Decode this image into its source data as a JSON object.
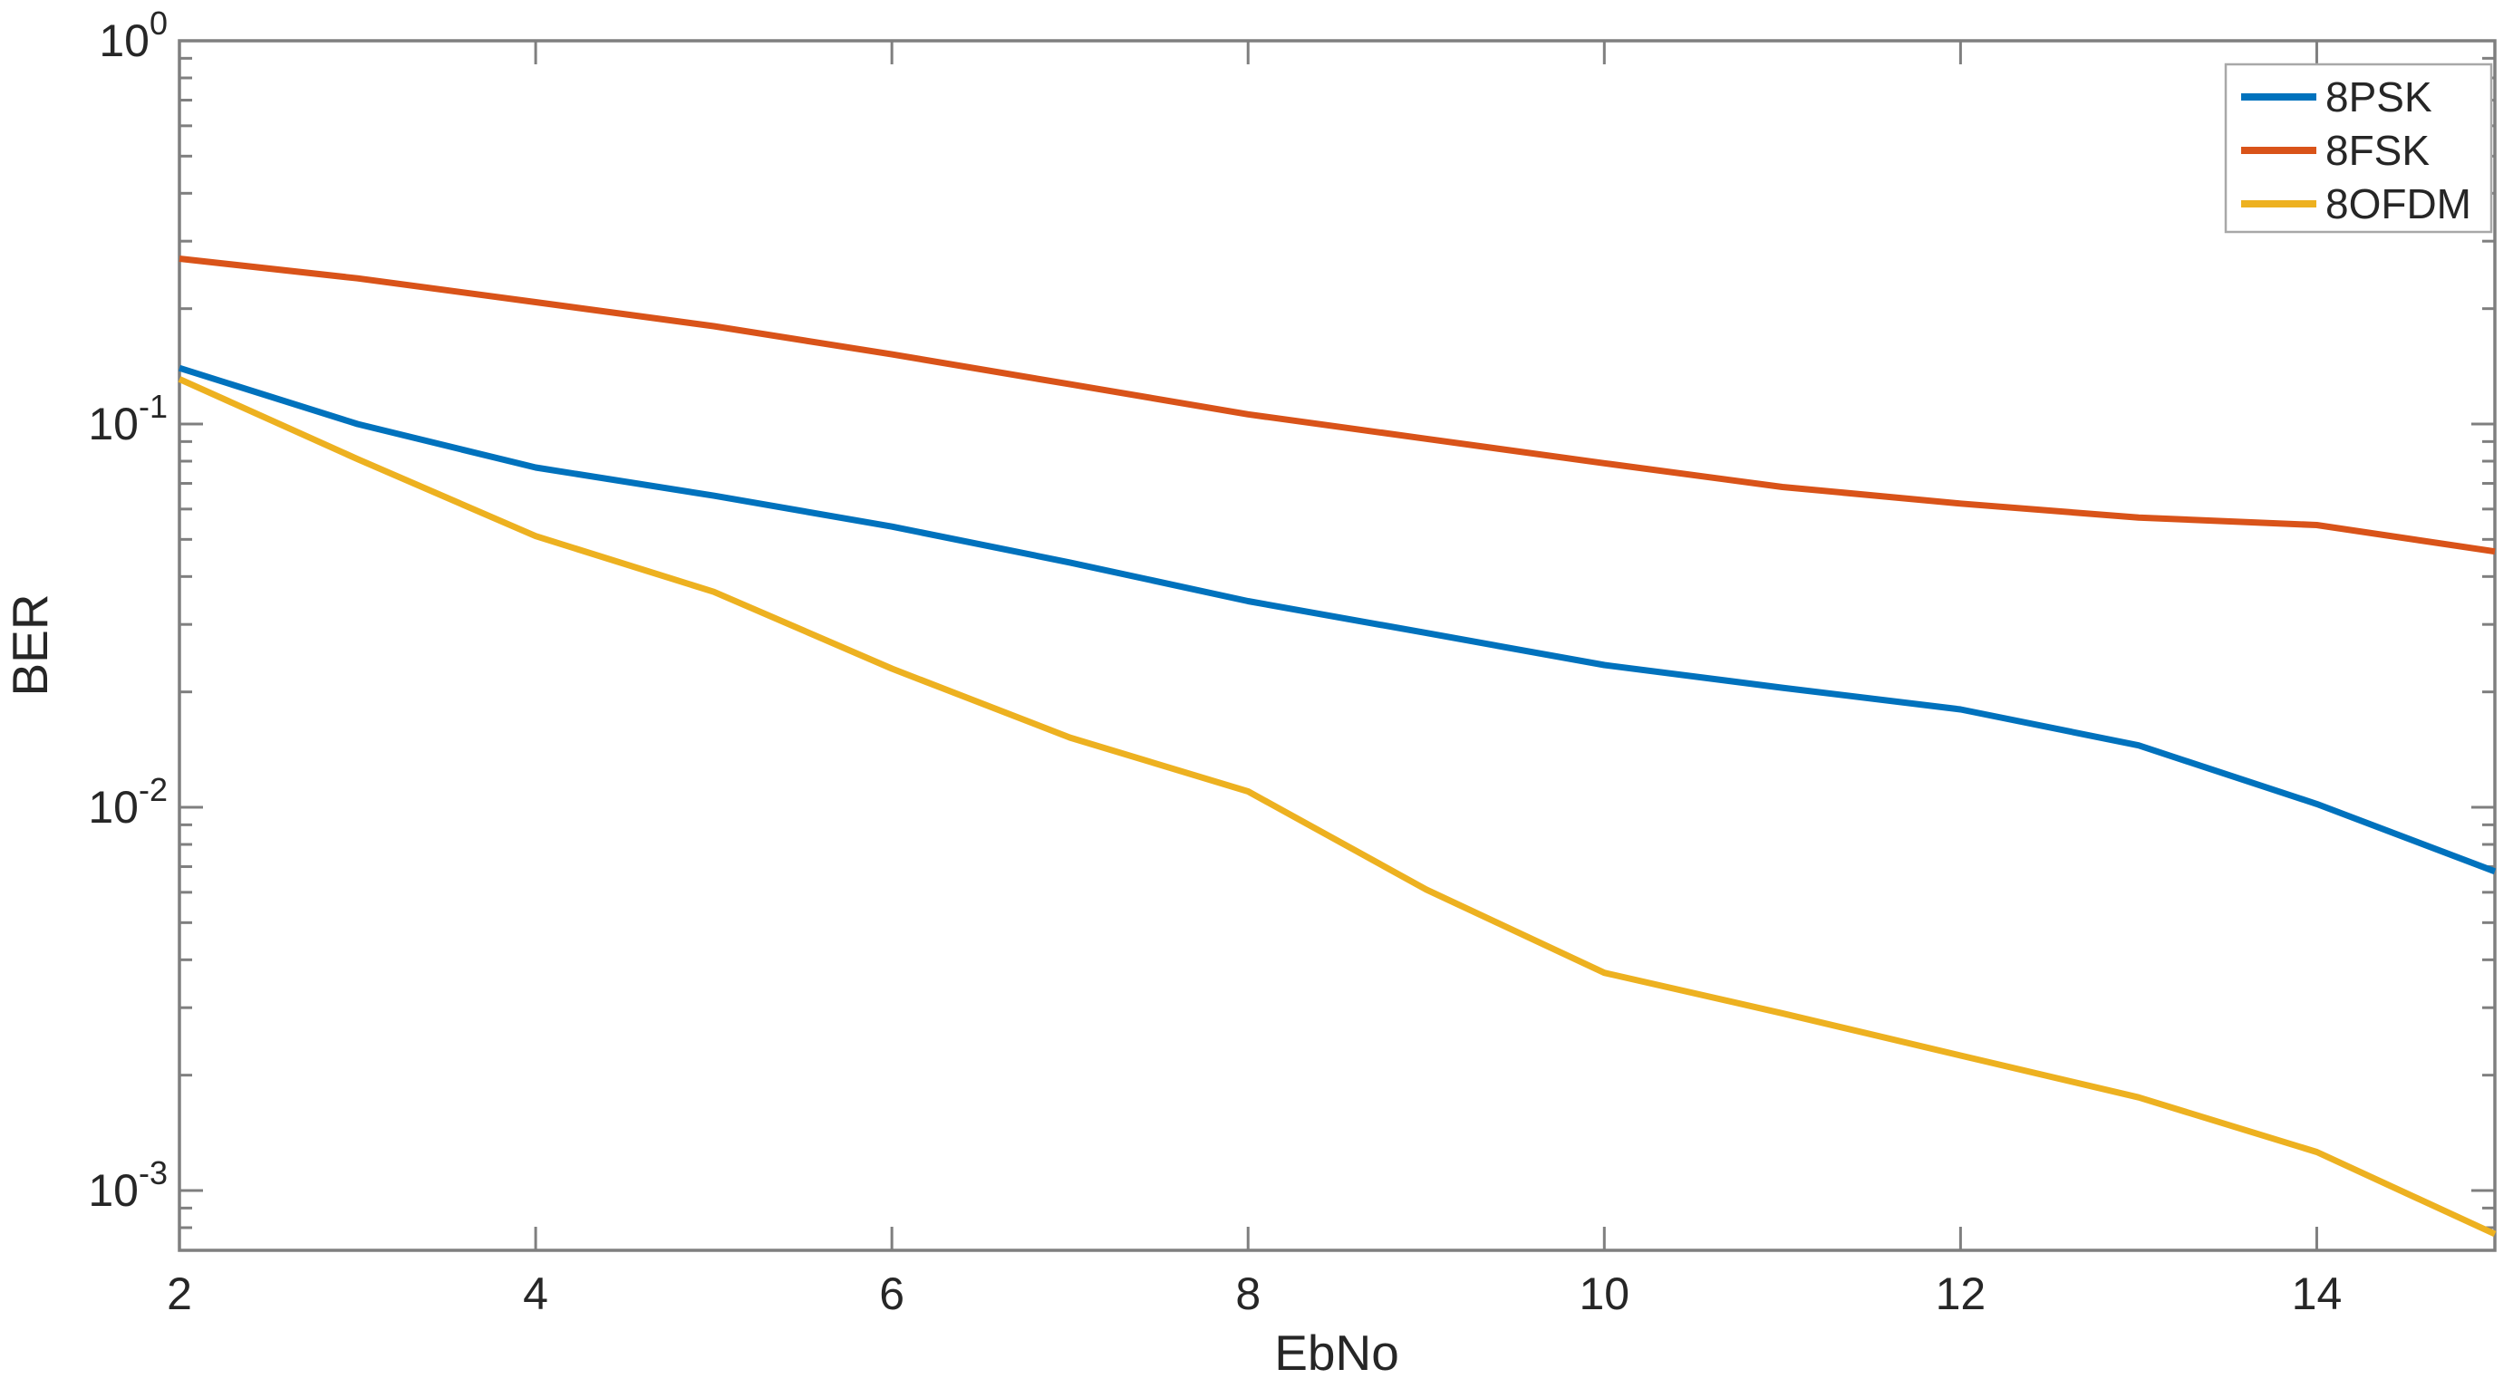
{
  "figure": {
    "background": "#ffffff",
    "text_color": "#262626",
    "spine_color": "#7f7f7f",
    "legend_border_color": "#a8a8a8"
  },
  "chart_data": {
    "type": "line",
    "title": "",
    "xlabel": "EbNo",
    "ylabel": "BER",
    "xscale": "linear",
    "yscale": "log",
    "xlim": [
      2,
      15
    ],
    "ylim": [
      0.0007,
      1.0
    ],
    "xticks": [
      2,
      4,
      6,
      8,
      10,
      12,
      14
    ],
    "ytick_exponents": [
      0,
      -1,
      -2,
      -3
    ],
    "grid": false,
    "legend": {
      "position": "top-right"
    },
    "x": [
      2,
      3,
      4,
      5,
      6,
      7,
      8,
      9,
      10,
      11,
      12,
      13,
      14,
      15
    ],
    "series": [
      {
        "name": "8PSK",
        "color": "#0072BD",
        "values": [
          0.14,
          0.1,
          0.077,
          0.065,
          0.054,
          0.0435,
          0.0345,
          0.0285,
          0.0235,
          0.0205,
          0.018,
          0.0145,
          0.0102,
          0.0068
        ]
      },
      {
        "name": "8FSK",
        "color": "#D95319",
        "values": [
          0.27,
          0.24,
          0.208,
          0.18,
          0.152,
          0.127,
          0.106,
          0.0915,
          0.079,
          0.0685,
          0.062,
          0.057,
          0.0545,
          0.0465
        ]
      },
      {
        "name": "8OFDM",
        "color": "#EDB120",
        "values": [
          0.131,
          0.081,
          0.051,
          0.0365,
          0.023,
          0.0152,
          0.011,
          0.0061,
          0.0037,
          0.0029,
          0.00225,
          0.00175,
          0.00126,
          0.00077
        ]
      }
    ]
  }
}
